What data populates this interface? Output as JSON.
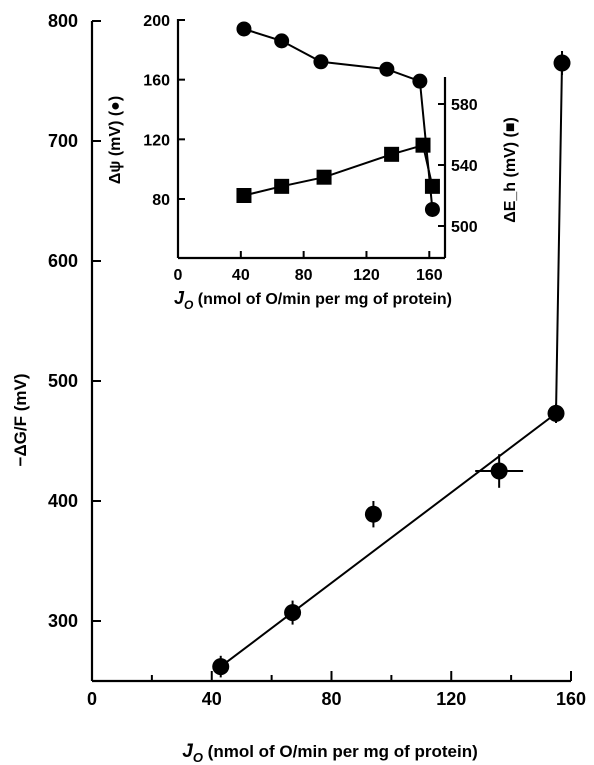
{
  "chart_data": [
    {
      "type": "scatter",
      "xlabel": "J_O (nmol of O/min per mg of protein)",
      "xlabel_main": "J",
      "xlabel_sub": "O",
      "xlabel_rest": " (nmol of O/min per mg of protein)",
      "ylabel": "−ΔG/F (mV)",
      "xlim": [
        0,
        160
      ],
      "ylim": [
        240,
        800
      ],
      "xticks": [
        0,
        40,
        80,
        120,
        160
      ],
      "yticks": [
        300,
        400,
        500,
        600,
        700,
        800
      ],
      "series": [
        {
          "marker": "circle",
          "x": [
            43,
            67,
            94,
            136,
            155,
            157
          ],
          "y": [
            262,
            307,
            389,
            425,
            473,
            765
          ],
          "yerr": [
            9,
            10,
            11,
            14,
            8,
            10
          ],
          "xerr": [
            0,
            0,
            0,
            8,
            0,
            0
          ],
          "fit": [
            [
              43,
              262
            ],
            [
              155,
              473
            ],
            [
              157,
              765
            ]
          ]
        }
      ]
    },
    {
      "type": "scatter",
      "xlabel": "J_O (nmol of O/min per mg of protein)",
      "xlabel_main": "J",
      "xlabel_sub": "O",
      "xlabel_rest": " (nmol of O/min per mg of protein)",
      "ylabel_left": "Δψ (mV) (●)",
      "ylabel_right": "ΔE_h (mV) (■)",
      "xlim": [
        0,
        170
      ],
      "xticks": [
        0,
        40,
        80,
        120,
        160
      ],
      "ylim_left": [
        60,
        200
      ],
      "yticks_left": [
        80,
        120,
        160,
        200
      ],
      "ylim_right": [
        490,
        600
      ],
      "yticks_right": [
        500,
        540,
        580
      ],
      "series": [
        {
          "marker": "circle",
          "axis": "left",
          "x": [
            42,
            66,
            91,
            133,
            154,
            162
          ],
          "y": [
            194,
            186,
            172,
            167,
            159,
            73
          ]
        },
        {
          "marker": "square",
          "axis": "right",
          "x": [
            42,
            66,
            93,
            136,
            156,
            162
          ],
          "y": [
            520,
            526,
            532,
            547,
            553,
            526
          ]
        }
      ]
    }
  ]
}
